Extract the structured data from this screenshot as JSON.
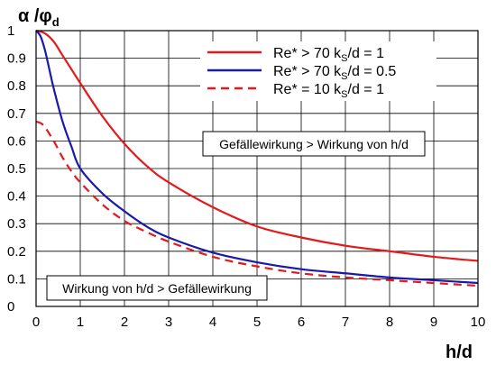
{
  "chart_data": {
    "type": "line",
    "title": "",
    "xlabel": "h/d",
    "ylabel": "α /φ",
    "ylabel_sub": "d",
    "xlim": [
      0,
      10
    ],
    "ylim": [
      0,
      1
    ],
    "x_ticks": [
      0,
      1,
      2,
      3,
      4,
      5,
      6,
      7,
      8,
      9,
      10
    ],
    "y_ticks": [
      "0",
      "0.1",
      "0.2",
      "0.3",
      "0.4",
      "0.5",
      "0.6",
      "0.7",
      "0.8",
      "0.9",
      "1"
    ],
    "grid": true,
    "legend_position": "top-right",
    "series": [
      {
        "name": "Re* > 70    kS/d = 1",
        "name_main": "Re* > 70    k",
        "name_sub": "S",
        "name_tail": "/d = 1",
        "color": "#e31a1c",
        "dash": "solid",
        "x": [
          0,
          0.2,
          0.4,
          0.6,
          0.8,
          1.0,
          1.5,
          2.0,
          2.5,
          3.0,
          4.0,
          5.0,
          6.0,
          7.0,
          8.0,
          9.0,
          10.0
        ],
        "y": [
          1.0,
          0.99,
          0.96,
          0.91,
          0.86,
          0.81,
          0.69,
          0.59,
          0.51,
          0.45,
          0.36,
          0.29,
          0.25,
          0.22,
          0.2,
          0.18,
          0.165
        ]
      },
      {
        "name": "Re* > 70    kS/d = 0.5",
        "name_main": "Re* > 70    k",
        "name_sub": "S",
        "name_tail": "/d = 0.5",
        "color": "#1a1aaa",
        "dash": "solid",
        "x": [
          0,
          0.1,
          0.2,
          0.3,
          0.4,
          0.6,
          0.8,
          1.0,
          1.5,
          2.0,
          2.5,
          3.0,
          4.0,
          5.0,
          6.0,
          7.0,
          8.0,
          9.0,
          10.0
        ],
        "y": [
          1.0,
          0.98,
          0.93,
          0.86,
          0.79,
          0.67,
          0.58,
          0.5,
          0.41,
          0.345,
          0.29,
          0.25,
          0.195,
          0.16,
          0.135,
          0.12,
          0.105,
          0.095,
          0.085
        ]
      },
      {
        "name": "Re* = 10    kS/d = 1",
        "name_main": "Re* = 10    k",
        "name_sub": "S",
        "name_tail": "/d = 1",
        "color": "#e31a1c",
        "dash": "dashed",
        "x": [
          0,
          0.1,
          0.2,
          0.4,
          0.6,
          0.8,
          1.0,
          1.5,
          2.0,
          2.5,
          3.0,
          4.0,
          5.0,
          6.0,
          7.0,
          8.0,
          9.0,
          10.0
        ],
        "y": [
          0.67,
          0.665,
          0.65,
          0.6,
          0.54,
          0.49,
          0.45,
          0.37,
          0.31,
          0.27,
          0.235,
          0.18,
          0.145,
          0.12,
          0.105,
          0.095,
          0.085,
          0.075
        ]
      }
    ],
    "annotations": [
      {
        "text": "Gefällewirkung > Wirkung von h/d",
        "position": "upper-center"
      },
      {
        "text": "Wirkung von h/d > Gefällewirkung",
        "position": "lower-left"
      }
    ]
  }
}
